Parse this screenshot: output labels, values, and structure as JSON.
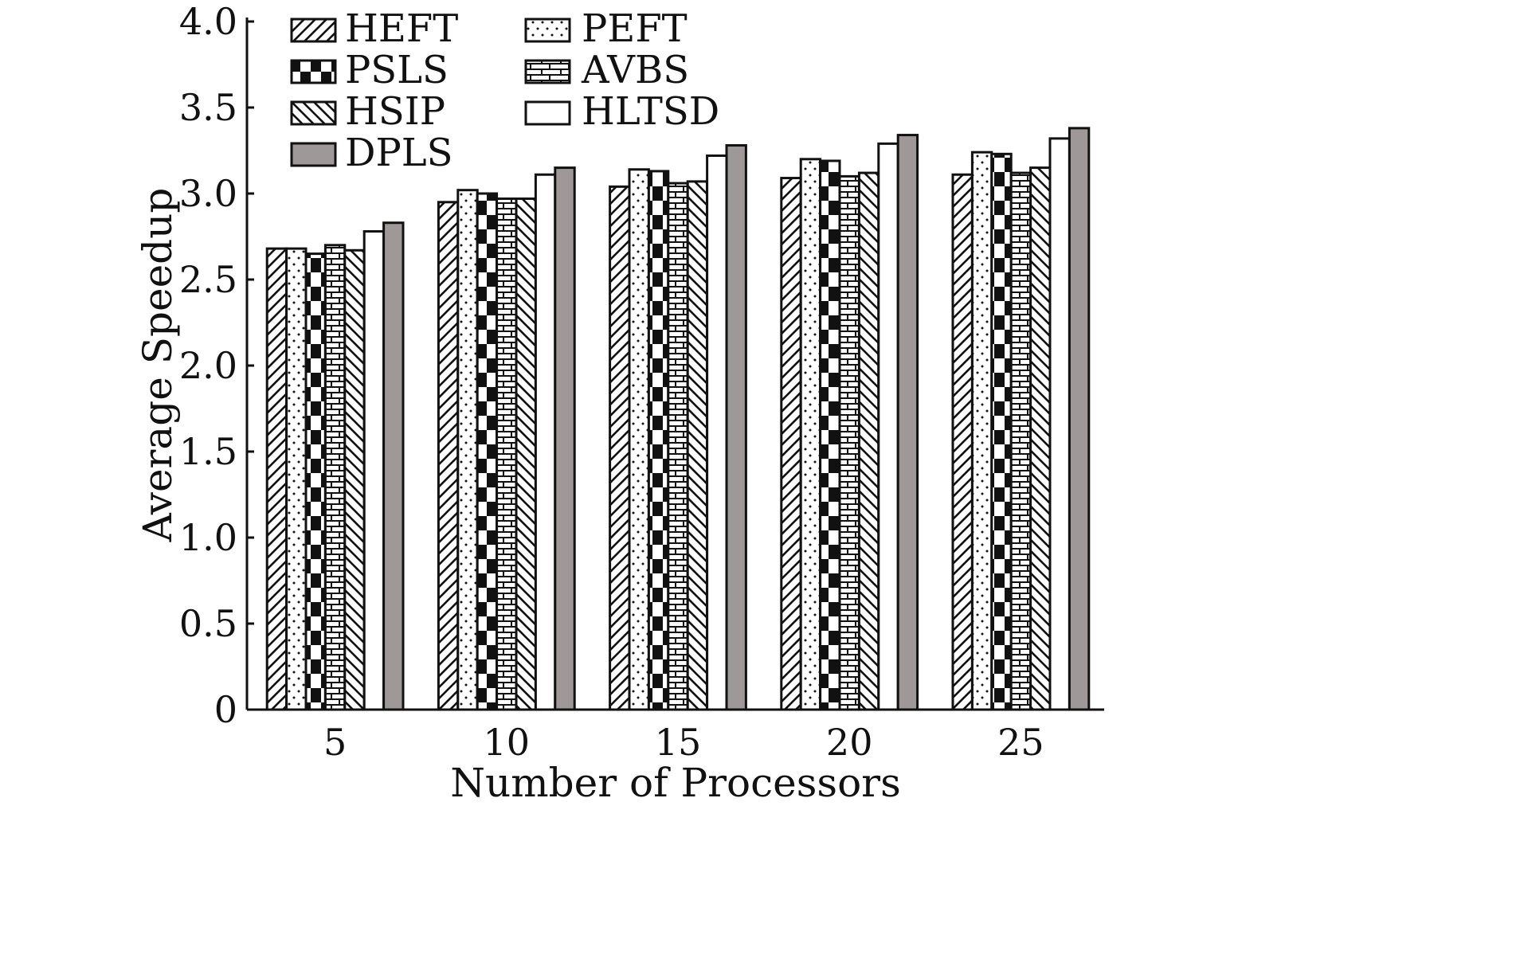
{
  "chart_data": {
    "type": "bar",
    "title": "",
    "xlabel": "Number of Processors",
    "ylabel": "Average Speedup",
    "ylim": [
      0,
      4.0
    ],
    "yticks": [
      "0",
      "0.5",
      "1.0",
      "1.5",
      "2.0",
      "2.5",
      "3.0",
      "3.5",
      "4.0"
    ],
    "categories": [
      "5",
      "10",
      "15",
      "20",
      "25"
    ],
    "grid": false,
    "legend_position": "top-left",
    "series": [
      {
        "name": "HEFT",
        "pattern": "diagonal-forward",
        "color": "#ffffff",
        "values": [
          2.68,
          2.95,
          3.04,
          3.09,
          3.11
        ]
      },
      {
        "name": "PEFT",
        "pattern": "dots",
        "color": "#ffffff",
        "values": [
          2.68,
          3.02,
          3.14,
          3.2,
          3.24
        ]
      },
      {
        "name": "PSLS",
        "pattern": "checker",
        "color": "#111111",
        "values": [
          2.65,
          3.0,
          3.13,
          3.19,
          3.23
        ]
      },
      {
        "name": "AVBS",
        "pattern": "brick",
        "color": "#ffffff",
        "values": [
          2.7,
          2.97,
          3.06,
          3.1,
          3.12
        ]
      },
      {
        "name": "HSIP",
        "pattern": "diagonal-back",
        "color": "#ffffff",
        "values": [
          2.67,
          2.97,
          3.07,
          3.12,
          3.15
        ]
      },
      {
        "name": "HLTSD",
        "pattern": "none",
        "color": "#ffffff",
        "values": [
          2.78,
          3.11,
          3.22,
          3.29,
          3.32
        ]
      },
      {
        "name": "DPLS",
        "pattern": "solid",
        "color": "#9e9898",
        "values": [
          2.83,
          3.15,
          3.28,
          3.34,
          3.38
        ]
      }
    ],
    "legend_order": [
      "HEFT",
      "PEFT",
      "PSLS",
      "AVBS",
      "HSIP",
      "HLTSD",
      "DPLS"
    ]
  }
}
